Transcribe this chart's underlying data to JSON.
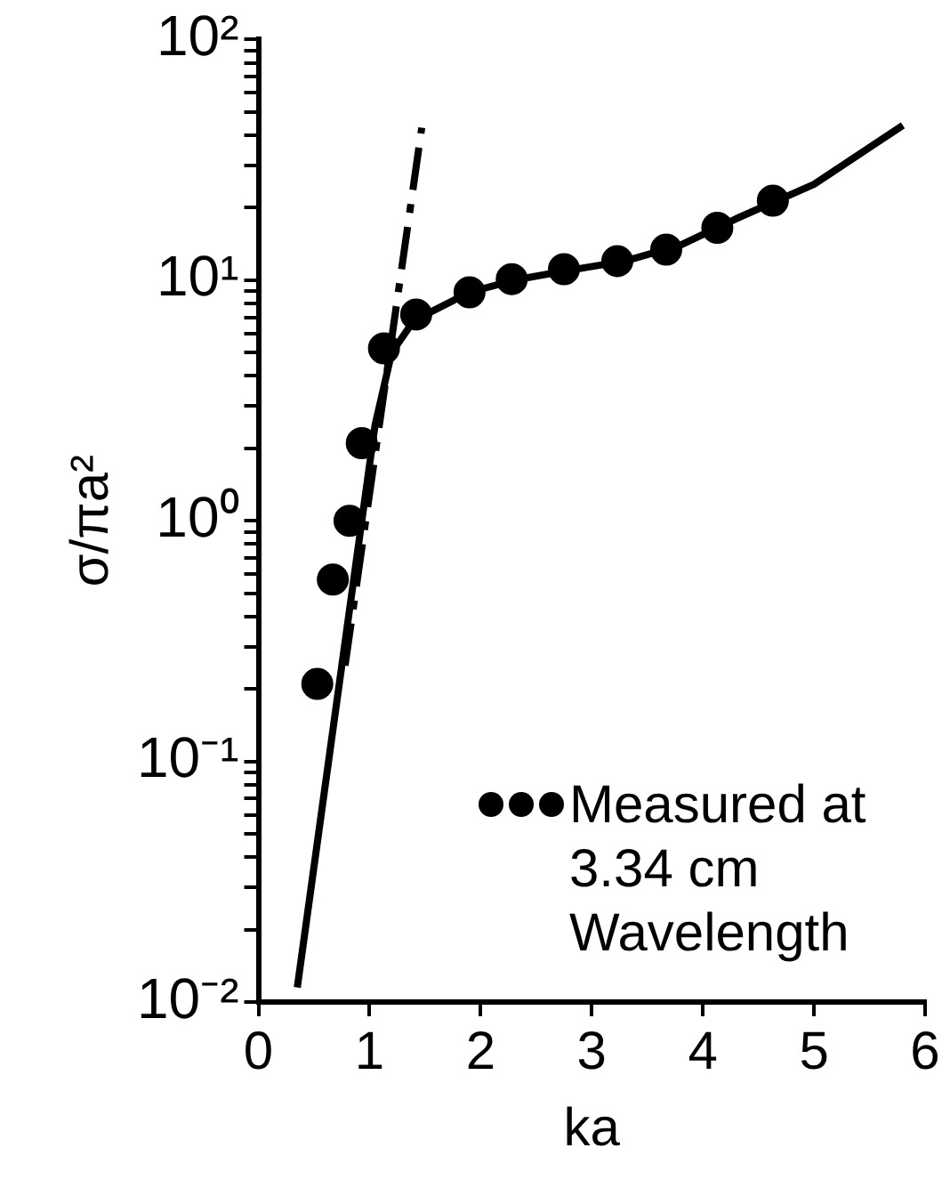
{
  "chart_data": {
    "type": "line",
    "xlabel": "ka",
    "ylabel": "σ/πa²",
    "log": "y",
    "grid": false,
    "legend": "bottom right",
    "xlim": [
      0,
      6
    ],
    "xticks": [
      0,
      1,
      2,
      3,
      4,
      5,
      6
    ],
    "ylim": [
      0.01,
      100
    ],
    "yticks": [
      {
        "value": 0.01,
        "label": "10⁻²"
      },
      {
        "value": 0.02,
        "label": null
      },
      {
        "value": 0.03,
        "label": null
      },
      {
        "value": 0.04,
        "label": null
      },
      {
        "value": 0.05,
        "label": null
      },
      {
        "value": 0.06,
        "label": null
      },
      {
        "value": 0.07,
        "label": null
      },
      {
        "value": 0.08,
        "label": null
      },
      {
        "value": 0.09,
        "label": null
      },
      {
        "value": 0.1,
        "label": "10⁻¹"
      },
      {
        "value": 0.2,
        "label": null
      },
      {
        "value": 0.3,
        "label": null
      },
      {
        "value": 0.4,
        "label": null
      },
      {
        "value": 0.5,
        "label": null
      },
      {
        "value": 0.6,
        "label": null
      },
      {
        "value": 0.7,
        "label": null
      },
      {
        "value": 0.8,
        "label": null
      },
      {
        "value": 0.9,
        "label": null
      },
      {
        "value": 1,
        "label": "10⁰"
      },
      {
        "value": 2,
        "label": null
      },
      {
        "value": 3,
        "label": null
      },
      {
        "value": 4,
        "label": null
      },
      {
        "value": 5,
        "label": null
      },
      {
        "value": 6,
        "label": null
      },
      {
        "value": 7,
        "label": null
      },
      {
        "value": 8,
        "label": null
      },
      {
        "value": 9,
        "label": null
      },
      {
        "value": 10,
        "label": "10¹"
      },
      {
        "value": 20,
        "label": null
      },
      {
        "value": 30,
        "label": null
      },
      {
        "value": 40,
        "label": null
      },
      {
        "value": 50,
        "label": null
      },
      {
        "value": 60,
        "label": null
      },
      {
        "value": 70,
        "label": null
      },
      {
        "value": 80,
        "label": null
      },
      {
        "value": 90,
        "label": null
      },
      {
        "value": 100,
        "label": "10²"
      }
    ],
    "series": [
      {
        "color": "#000000",
        "marker": "none",
        "line_style": "solid",
        "x": [
          0.35,
          1.05,
          1.2,
          1.4,
          1.9,
          2.3,
          2.8,
          3.3,
          3.8,
          4.3,
          5.0,
          5.8
        ],
        "values": [
          0.0115,
          2.5,
          5,
          6.8,
          8.9,
          10,
          11,
          12,
          14,
          18,
          25,
          44
        ]
      },
      {
        "color": "#000000",
        "marker": "none",
        "line_style": "dashed",
        "x": [
          0.78,
          1.47
        ],
        "values": [
          0.25,
          43
        ]
      },
      {
        "type": "scatter",
        "name": "Measured at 3.34 cm Wavelength",
        "color": "#000000",
        "marker": "circle",
        "x": [
          0.53,
          0.67,
          0.82,
          0.93,
          1.13,
          1.42,
          1.9,
          2.28,
          2.75,
          3.23,
          3.67,
          4.13,
          4.63
        ],
        "values": [
          0.21,
          0.57,
          1.0,
          2.1,
          5.2,
          7.2,
          8.9,
          10.1,
          11.1,
          12,
          13.4,
          16.5,
          21.4
        ]
      }
    ]
  }
}
